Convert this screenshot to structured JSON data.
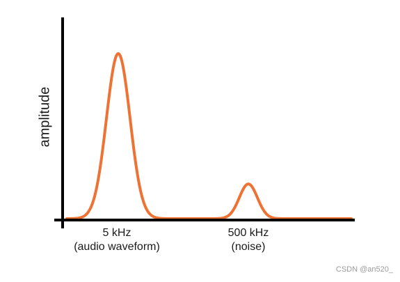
{
  "chart_data": {
    "type": "line",
    "title": "",
    "xlabel": "",
    "ylabel": "amplitude",
    "grid": false,
    "legend": "none",
    "line_color": "#ED7234",
    "axis_color": "#000000",
    "x_scale": "schematic (not to scale)",
    "peaks": [
      {
        "label_line1": "5 kHz",
        "label_line2": "(audio waveform)",
        "relative_amplitude": 1.0
      },
      {
        "label_line1": "500 kHz",
        "label_line2": "(noise)",
        "relative_amplitude": 0.21
      }
    ]
  },
  "watermark": "CSDN @an520_"
}
